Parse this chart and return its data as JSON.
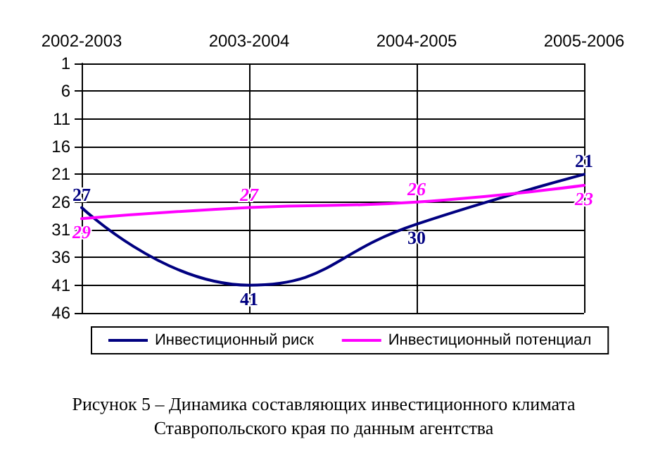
{
  "chart_data": {
    "type": "line",
    "title": "Рисунок 5 – Динамика составляющих инвестиционного климата Ставропольского края по данным агентства",
    "categories": [
      "2002-2003",
      "2003-2004",
      "2004-2005",
      "2005-2006"
    ],
    "series": [
      {
        "name": "Инвестиционный риск",
        "color": "#000080",
        "values": [
          27,
          41,
          30,
          21
        ]
      },
      {
        "name": "Инвестиционный потенциал",
        "color": "#ff00ff",
        "values": [
          29,
          27,
          26,
          23
        ]
      }
    ],
    "ylim": [
      46,
      1
    ],
    "yticks": [
      1,
      6,
      11,
      16,
      21,
      26,
      31,
      36,
      41,
      46
    ],
    "grid": true,
    "legend": "bottom",
    "data_labels": true,
    "marker": "none",
    "line_style": "solid"
  }
}
